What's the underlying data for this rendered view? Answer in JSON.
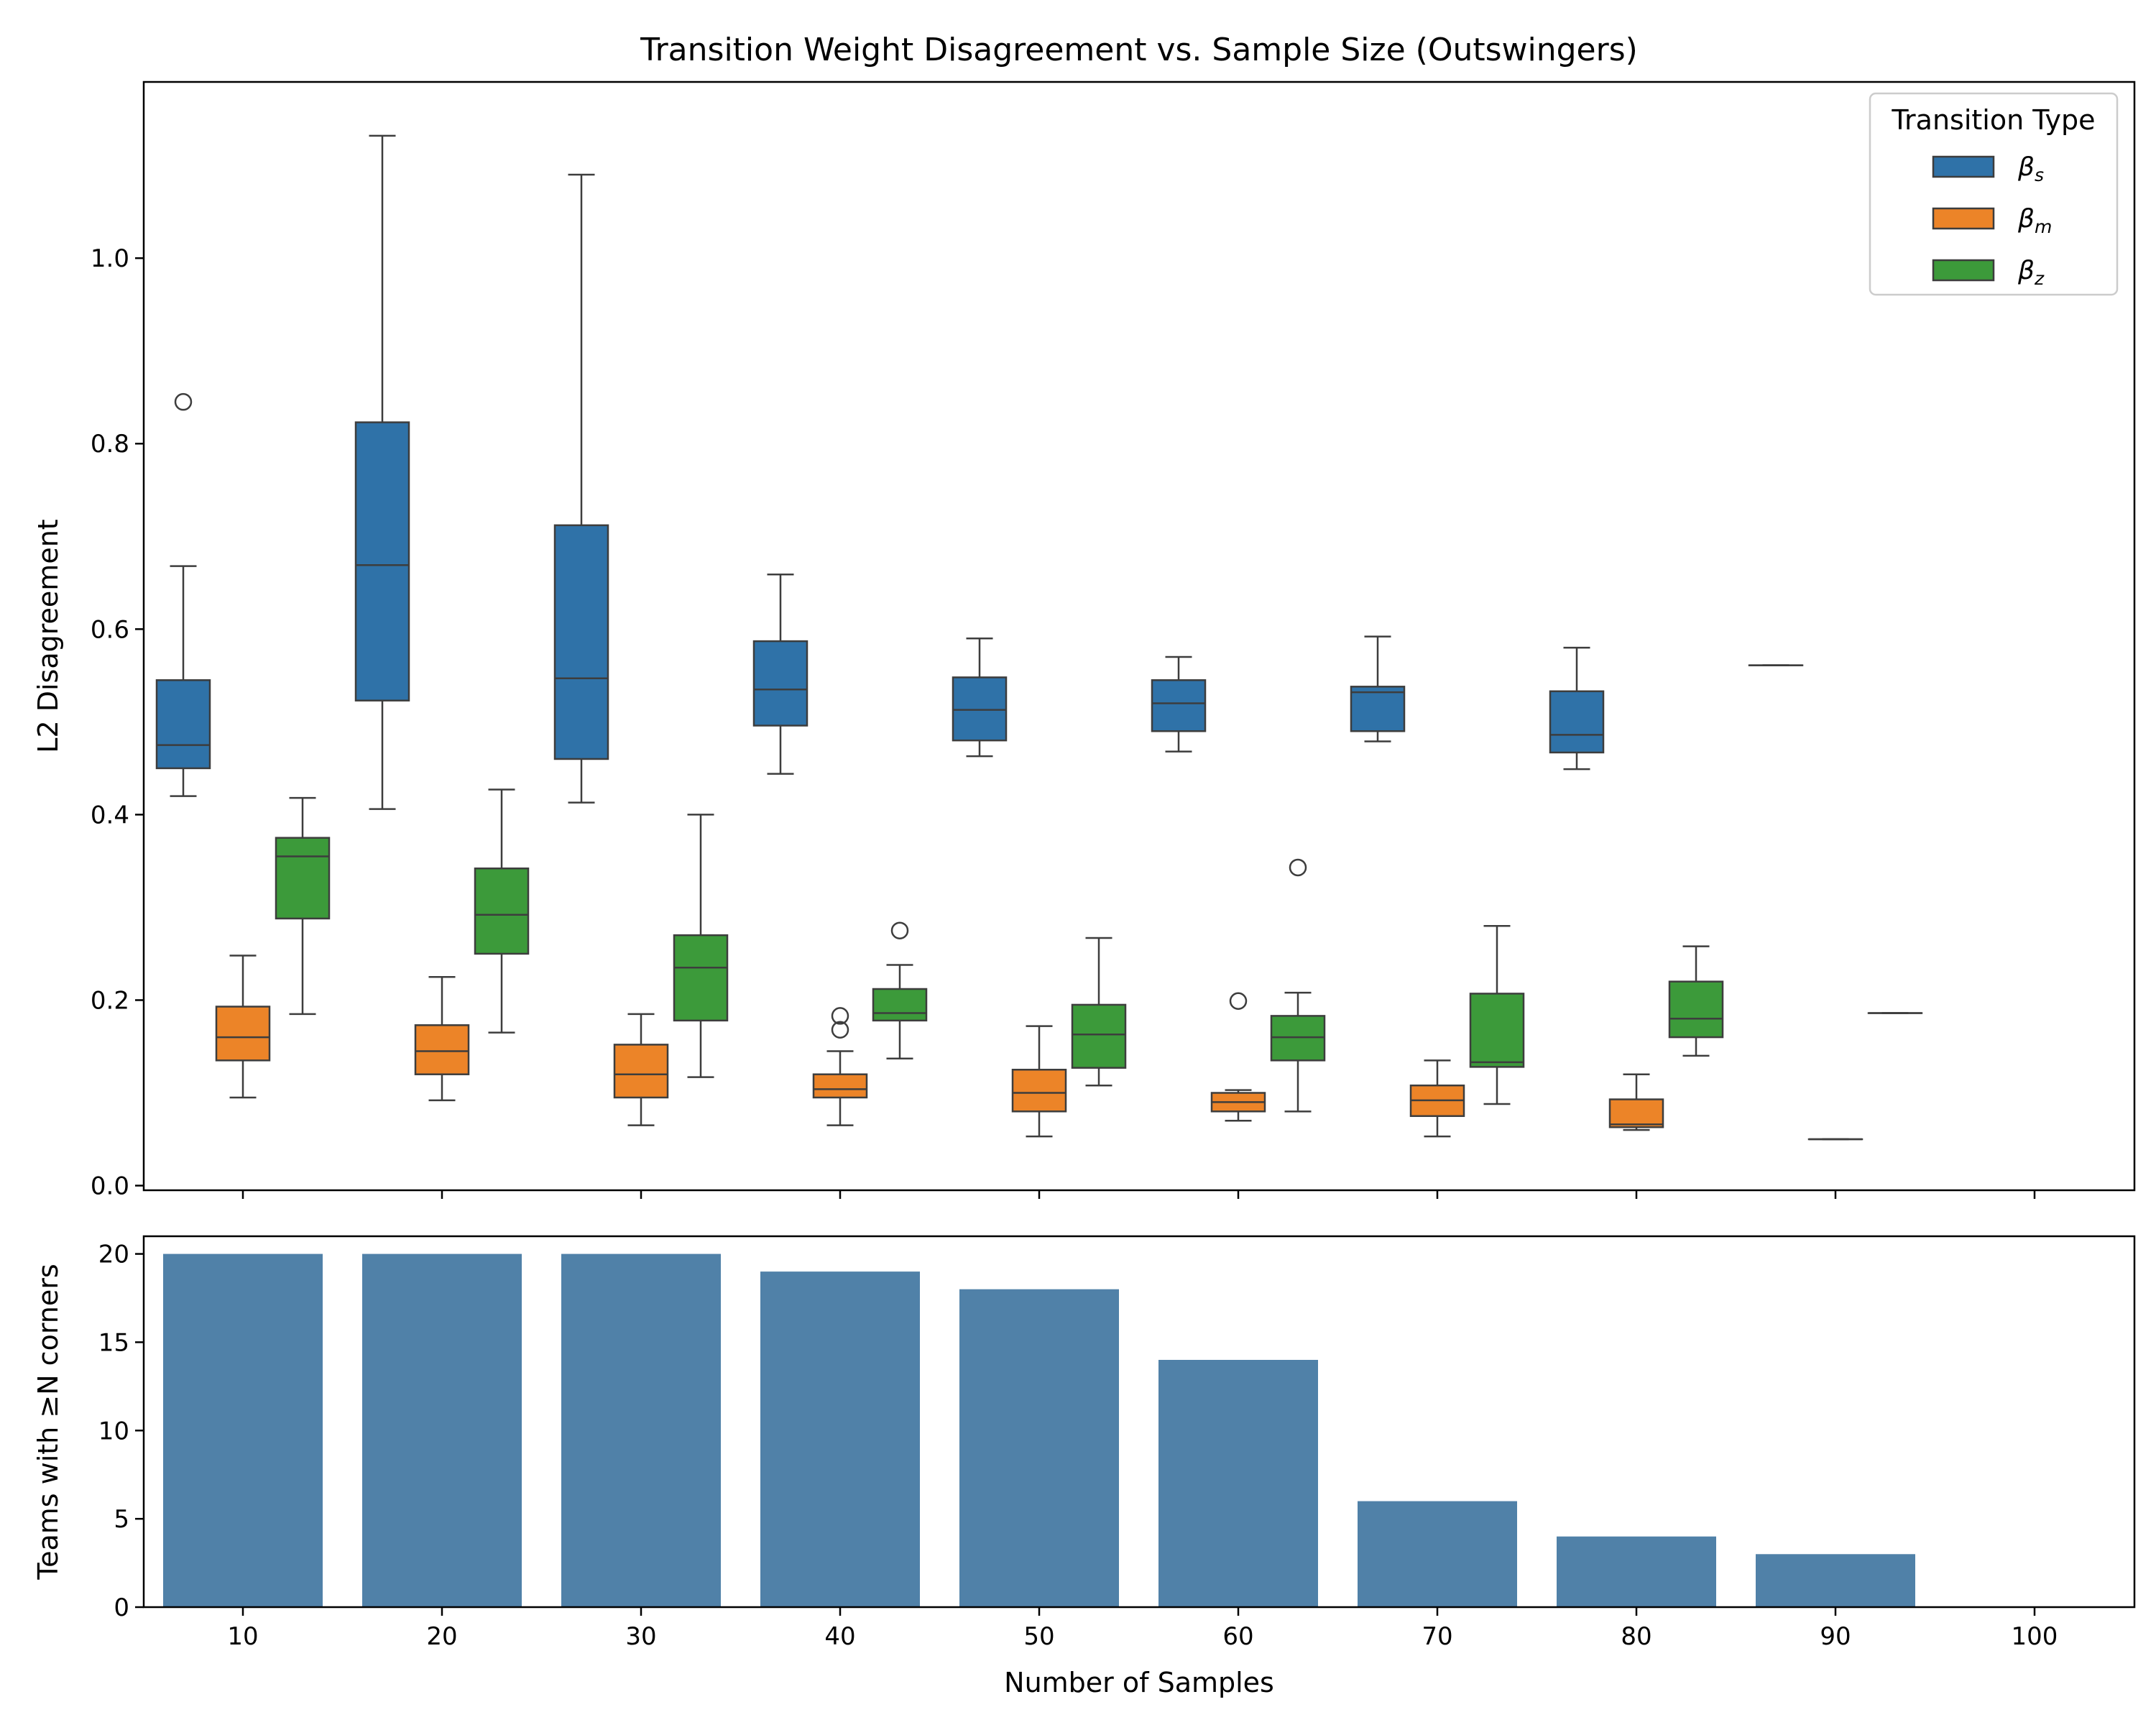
{
  "chart_data": [
    {
      "type": "box",
      "title": "Transition Weight Disagreement vs. Sample Size (Outswingers)",
      "xlabel": "",
      "ylabel": "L2 Disagreement",
      "ylim": [
        -0.005,
        1.19
      ],
      "yticks": [
        "0.0",
        "0.2",
        "0.4",
        "0.6",
        "0.8",
        "1.0"
      ],
      "categories": [
        "10",
        "20",
        "30",
        "40",
        "50",
        "60",
        "70",
        "80",
        "90",
        "100"
      ],
      "legend": {
        "title": "Transition Type",
        "position": "top-right",
        "entries": [
          {
            "label": "βs",
            "base": "β",
            "sub": "s",
            "color": "#2f72a8"
          },
          {
            "label": "βm",
            "base": "β",
            "sub": "m",
            "color": "#ec8428"
          },
          {
            "label": "βz",
            "base": "β",
            "sub": "z",
            "color": "#3c9a3a"
          }
        ]
      },
      "series": [
        {
          "name": "βs",
          "color": "#2f72a8",
          "boxes": [
            {
              "whislo": 0.42,
              "q1": 0.45,
              "med": 0.475,
              "q3": 0.545,
              "whishi": 0.668,
              "fliers": [
                0.845
              ]
            },
            {
              "whislo": 0.406,
              "q1": 0.523,
              "med": 0.669,
              "q3": 0.823,
              "whishi": 1.132,
              "fliers": []
            },
            {
              "whislo": 0.413,
              "q1": 0.46,
              "med": 0.547,
              "q3": 0.712,
              "whishi": 1.09,
              "fliers": []
            },
            {
              "whislo": 0.444,
              "q1": 0.496,
              "med": 0.535,
              "q3": 0.587,
              "whishi": 0.659,
              "fliers": []
            },
            {
              "whislo": 0.463,
              "q1": 0.48,
              "med": 0.513,
              "q3": 0.548,
              "whishi": 0.59,
              "fliers": []
            },
            {
              "whislo": 0.468,
              "q1": 0.49,
              "med": 0.52,
              "q3": 0.545,
              "whishi": 0.57,
              "fliers": []
            },
            {
              "whislo": 0.479,
              "q1": 0.49,
              "med": 0.532,
              "q3": 0.538,
              "whishi": 0.592,
              "fliers": []
            },
            {
              "whislo": 0.449,
              "q1": 0.467,
              "med": 0.486,
              "q3": 0.533,
              "whishi": 0.58,
              "fliers": []
            },
            {
              "whislo": 0.561,
              "q1": 0.561,
              "med": 0.561,
              "q3": 0.561,
              "whishi": 0.561,
              "fliers": []
            },
            null
          ]
        },
        {
          "name": "βm",
          "color": "#ec8428",
          "boxes": [
            {
              "whislo": 0.095,
              "q1": 0.135,
              "med": 0.16,
              "q3": 0.193,
              "whishi": 0.248,
              "fliers": []
            },
            {
              "whislo": 0.092,
              "q1": 0.12,
              "med": 0.145,
              "q3": 0.173,
              "whishi": 0.225,
              "fliers": []
            },
            {
              "whislo": 0.065,
              "q1": 0.095,
              "med": 0.12,
              "q3": 0.152,
              "whishi": 0.185,
              "fliers": []
            },
            {
              "whislo": 0.065,
              "q1": 0.095,
              "med": 0.104,
              "q3": 0.12,
              "whishi": 0.145,
              "fliers": [
                0.168,
                0.183
              ]
            },
            {
              "whislo": 0.053,
              "q1": 0.08,
              "med": 0.1,
              "q3": 0.125,
              "whishi": 0.172,
              "fliers": []
            },
            {
              "whislo": 0.07,
              "q1": 0.08,
              "med": 0.09,
              "q3": 0.1,
              "whishi": 0.103,
              "fliers": [
                0.199
              ]
            },
            {
              "whislo": 0.053,
              "q1": 0.075,
              "med": 0.092,
              "q3": 0.108,
              "whishi": 0.135,
              "fliers": []
            },
            {
              "whislo": 0.06,
              "q1": 0.063,
              "med": 0.066,
              "q3": 0.093,
              "whishi": 0.12,
              "fliers": []
            },
            {
              "whislo": 0.05,
              "q1": 0.05,
              "med": 0.05,
              "q3": 0.05,
              "whishi": 0.05,
              "fliers": []
            },
            null
          ]
        },
        {
          "name": "βz",
          "color": "#3c9a3a",
          "boxes": [
            {
              "whislo": 0.185,
              "q1": 0.288,
              "med": 0.355,
              "q3": 0.375,
              "whishi": 0.418,
              "fliers": []
            },
            {
              "whislo": 0.165,
              "q1": 0.25,
              "med": 0.292,
              "q3": 0.342,
              "whishi": 0.427,
              "fliers": []
            },
            {
              "whislo": 0.117,
              "q1": 0.178,
              "med": 0.235,
              "q3": 0.27,
              "whishi": 0.4,
              "fliers": []
            },
            {
              "whislo": 0.137,
              "q1": 0.178,
              "med": 0.186,
              "q3": 0.212,
              "whishi": 0.238,
              "fliers": [
                0.275
              ]
            },
            {
              "whislo": 0.108,
              "q1": 0.127,
              "med": 0.163,
              "q3": 0.195,
              "whishi": 0.267,
              "fliers": []
            },
            {
              "whislo": 0.08,
              "q1": 0.135,
              "med": 0.16,
              "q3": 0.183,
              "whishi": 0.208,
              "fliers": [
                0.343
              ]
            },
            {
              "whislo": 0.088,
              "q1": 0.128,
              "med": 0.133,
              "q3": 0.207,
              "whishi": 0.28,
              "fliers": []
            },
            {
              "whislo": 0.14,
              "q1": 0.16,
              "med": 0.18,
              "q3": 0.22,
              "whishi": 0.258,
              "fliers": []
            },
            {
              "whislo": 0.186,
              "q1": 0.186,
              "med": 0.186,
              "q3": 0.186,
              "whishi": 0.186,
              "fliers": []
            },
            null
          ]
        }
      ]
    },
    {
      "type": "bar",
      "title": "",
      "xlabel": "Number of Samples",
      "ylabel": "Teams with ≥N corners",
      "ylim": [
        0,
        21
      ],
      "yticks": [
        "0",
        "5",
        "10",
        "15",
        "20"
      ],
      "categories": [
        "10",
        "20",
        "30",
        "40",
        "50",
        "60",
        "70",
        "80",
        "90",
        "100"
      ],
      "values": [
        20,
        20,
        20,
        19,
        18,
        14,
        6,
        4,
        3,
        0
      ],
      "color": "#5081a8"
    }
  ]
}
